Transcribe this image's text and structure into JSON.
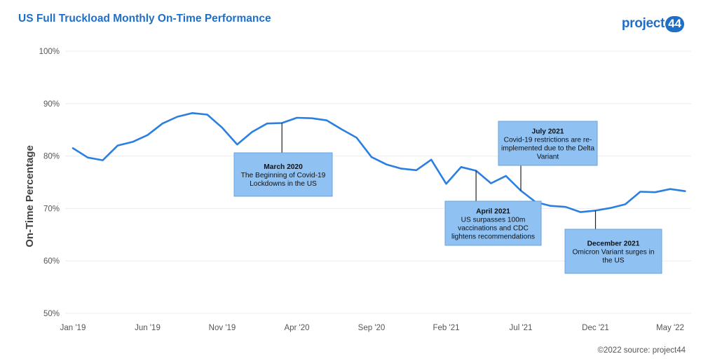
{
  "header": {
    "title": "US Full Truckload Monthly On-Time Performance",
    "logo_text": "project",
    "logo_badge": "44"
  },
  "footer": {
    "source": "©2022 source: project44"
  },
  "colors": {
    "line": "#2b7fe0",
    "annotation_fill": "#8fc1f3",
    "annotation_stroke": "#6aa4e0",
    "brand": "#1f6fc8"
  },
  "chart_data": {
    "type": "line",
    "ylabel": "On-Time Percentage",
    "xlabel": "",
    "ylim": [
      50,
      100
    ],
    "yticks": [
      50,
      60,
      70,
      80,
      90,
      100
    ],
    "ytick_labels": [
      "50%",
      "60%",
      "70%",
      "80%",
      "90%",
      "100%"
    ],
    "xlim": [
      "2019-01",
      "2022-05"
    ],
    "xticks": [
      "2019-01",
      "2019-06",
      "2019-11",
      "2020-04",
      "2020-09",
      "2021-02",
      "2021-07",
      "2021-12",
      "2022-05"
    ],
    "xtick_labels": [
      "Jan '19",
      "Jun '19",
      "Nov '19",
      "Apr '20",
      "Sep '20",
      "Feb '21",
      "Jul '21",
      "Dec '21",
      "May '22"
    ],
    "grid": true,
    "legend": "none",
    "series": [
      {
        "x": [
          "2019-01",
          "2019-02",
          "2019-03",
          "2019-04",
          "2019-05",
          "2019-06",
          "2019-07",
          "2019-08",
          "2019-09",
          "2019-10",
          "2019-11",
          "2019-12",
          "2020-01",
          "2020-02",
          "2020-03",
          "2020-04",
          "2020-05",
          "2020-06",
          "2020-07",
          "2020-08",
          "2020-09",
          "2020-10",
          "2020-11",
          "2020-12",
          "2021-01",
          "2021-02",
          "2021-03",
          "2021-04",
          "2021-05",
          "2021-06",
          "2021-07",
          "2021-08",
          "2021-09",
          "2021-10",
          "2021-11",
          "2021-12",
          "2022-01",
          "2022-02",
          "2022-03",
          "2022-04",
          "2022-05",
          "2022-06"
        ],
        "values": [
          81.5,
          79.7,
          79.2,
          82.0,
          82.7,
          84.0,
          86.2,
          87.5,
          88.2,
          87.9,
          85.4,
          82.2,
          84.6,
          86.2,
          86.3,
          87.3,
          87.2,
          86.8,
          85.1,
          83.5,
          79.8,
          78.4,
          77.6,
          77.3,
          79.3,
          74.7,
          77.9,
          77.2,
          74.8,
          76.2,
          73.4,
          71.2,
          70.5,
          70.3,
          69.3,
          69.6,
          70.1,
          70.8,
          73.2,
          73.1,
          73.7,
          73.3
        ]
      }
    ],
    "annotations": [
      {
        "x": "2020-03",
        "title": "March 2020",
        "text": [
          "The Beginning of Covid-19",
          "Lockdowns in the US"
        ]
      },
      {
        "x": "2021-04",
        "title": "April 2021",
        "text": [
          "US surpasses 100m",
          "vaccinations and CDC",
          "lightens recommendations"
        ]
      },
      {
        "x": "2021-07",
        "title": "July 2021",
        "text": [
          "Covid-19 restrictions are re-",
          "implemented due to the Delta",
          "Variant"
        ]
      },
      {
        "x": "2021-12",
        "title": "December 2021",
        "text": [
          "Omicron Variant surges in",
          "the US"
        ]
      }
    ]
  }
}
